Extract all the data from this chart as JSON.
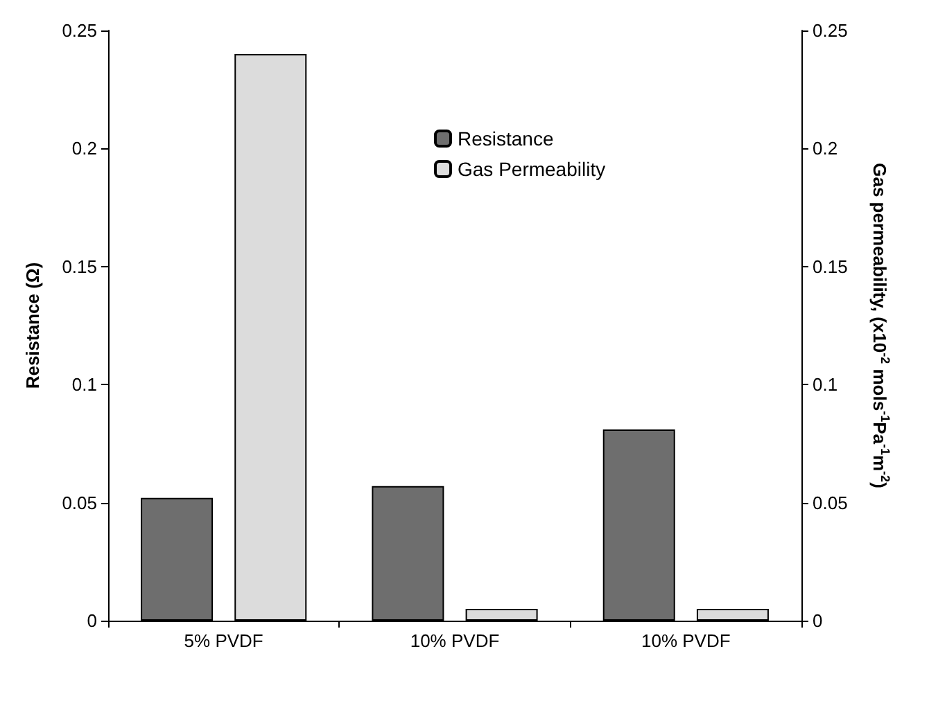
{
  "chart_data": {
    "type": "bar",
    "categories": [
      "5% PVDF",
      "10% PVDF",
      "10% PVDF"
    ],
    "ylabel": "Resistance (Ω)",
    "y2label": "Gas permeability, (x10$^{-2}$ mols$^{-1}$Pa$^{-1}$m$^{-2}$)",
    "series": [
      {
        "name": "Resistance",
        "color": "#6e6e6e",
        "values": [
          0.052,
          0.057,
          0.081
        ]
      },
      {
        "name": "Gas Permeability",
        "color": "#dcdcdc",
        "values": [
          0.24,
          0.005,
          0.005
        ],
        "axis": "y2"
      }
    ],
    "ylim": [
      0,
      0.25
    ],
    "yticks": [
      0,
      0.05,
      0.1,
      0.15,
      0.2,
      0.25
    ],
    "y2lim": [
      0,
      0.25
    ],
    "y2ticks": [
      0,
      0.05,
      0.1,
      0.15,
      0.2,
      0.25
    ],
    "grid": false,
    "legend": "top"
  }
}
